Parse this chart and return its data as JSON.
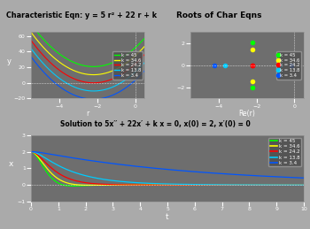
{
  "k_values": [
    45,
    34.6,
    24.2,
    13.8,
    3.4
  ],
  "colors": [
    "#00ff00",
    "#ffff00",
    "#ff0000",
    "#00ccff",
    "#0055ff"
  ],
  "bg_color": "#6e6e6e",
  "fig_bg": "#aaaaaa",
  "title1": "Characteristic Eqn: y = 5 r² + 22 r + k",
  "title2": "Roots of Char Eqns",
  "title3": "Solution to 5x′′ + 22x′ + k x = 0, x(0) = 2, x′(0) = 0",
  "ax1_xlabel": "r",
  "ax1_ylabel": "y",
  "ax2_xlabel": "Re(r)",
  "ax3_xlabel": "t",
  "ax3_ylabel": "x",
  "legend_labels": [
    "k = 45",
    "k = 34.6",
    "k = 24.2",
    "k = 13.8",
    "k = 3.4"
  ]
}
